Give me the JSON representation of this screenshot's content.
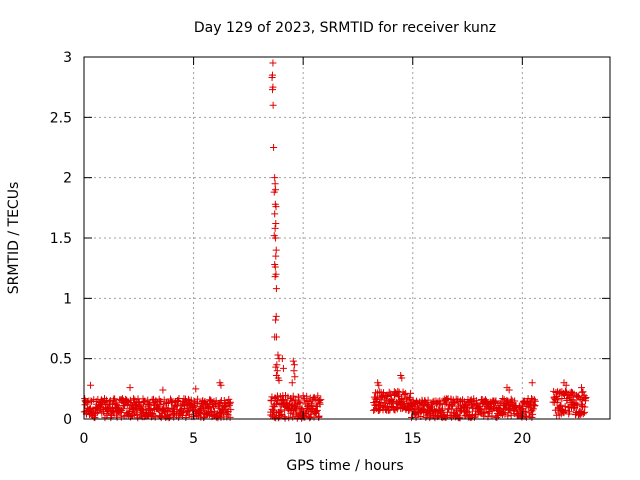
{
  "chart_data": {
    "type": "scatter",
    "title": "Day 129 of 2023, SRMTID for receiver kunz",
    "xlabel": "GPS time / hours",
    "ylabel": "SRMTID / TECUs",
    "xlim": [
      0,
      24
    ],
    "ylim": [
      0,
      3
    ],
    "xticks": [
      0,
      5,
      10,
      15,
      20
    ],
    "yticks": [
      0,
      0.5,
      1,
      1.5,
      2,
      2.5,
      3
    ],
    "ytick_labels": [
      "0",
      "0.5",
      "1",
      "1.5",
      "2",
      "2.5",
      "3"
    ],
    "grid": true,
    "marker": "+",
    "color": "#e00000",
    "segments": [
      {
        "x_start": 0.0,
        "x_end": 6.7,
        "base": 0.09,
        "noise": 0.08,
        "count": 430
      },
      {
        "x_start": 8.5,
        "x_end": 10.8,
        "base": 0.1,
        "noise": 0.1,
        "count": 150
      },
      {
        "x_start": 13.2,
        "x_end": 14.9,
        "base": 0.15,
        "noise": 0.08,
        "count": 110
      },
      {
        "x_start": 14.9,
        "x_end": 20.6,
        "base": 0.09,
        "noise": 0.08,
        "count": 360
      },
      {
        "x_start": 21.4,
        "x_end": 22.9,
        "base": 0.13,
        "noise": 0.1,
        "count": 100
      }
    ],
    "points": [
      {
        "x": 8.62,
        "y": 2.95
      },
      {
        "x": 8.6,
        "y": 2.85
      },
      {
        "x": 8.58,
        "y": 2.83
      },
      {
        "x": 8.62,
        "y": 2.75
      },
      {
        "x": 8.6,
        "y": 2.73
      },
      {
        "x": 8.63,
        "y": 2.6
      },
      {
        "x": 8.65,
        "y": 2.25
      },
      {
        "x": 8.7,
        "y": 2.0
      },
      {
        "x": 8.72,
        "y": 1.95
      },
      {
        "x": 8.68,
        "y": 1.88
      },
      {
        "x": 8.74,
        "y": 1.9
      },
      {
        "x": 8.73,
        "y": 1.78
      },
      {
        "x": 8.76,
        "y": 1.76
      },
      {
        "x": 8.7,
        "y": 1.7
      },
      {
        "x": 8.75,
        "y": 1.62
      },
      {
        "x": 8.72,
        "y": 1.58
      },
      {
        "x": 8.68,
        "y": 1.52
      },
      {
        "x": 8.74,
        "y": 1.5
      },
      {
        "x": 8.77,
        "y": 1.4
      },
      {
        "x": 8.75,
        "y": 1.35
      },
      {
        "x": 8.7,
        "y": 1.28
      },
      {
        "x": 8.73,
        "y": 1.26
      },
      {
        "x": 8.76,
        "y": 1.2
      },
      {
        "x": 8.72,
        "y": 1.18
      },
      {
        "x": 8.78,
        "y": 1.08
      },
      {
        "x": 8.77,
        "y": 0.85
      },
      {
        "x": 8.74,
        "y": 0.82
      },
      {
        "x": 8.7,
        "y": 0.68
      },
      {
        "x": 8.78,
        "y": 0.68
      },
      {
        "x": 8.85,
        "y": 0.53
      },
      {
        "x": 8.9,
        "y": 0.5
      },
      {
        "x": 8.8,
        "y": 0.45
      },
      {
        "x": 8.75,
        "y": 0.43
      },
      {
        "x": 8.82,
        "y": 0.4
      },
      {
        "x": 8.78,
        "y": 0.36
      },
      {
        "x": 8.86,
        "y": 0.34
      },
      {
        "x": 8.9,
        "y": 0.32
      },
      {
        "x": 9.05,
        "y": 0.5
      },
      {
        "x": 9.1,
        "y": 0.42
      },
      {
        "x": 9.55,
        "y": 0.48
      },
      {
        "x": 9.6,
        "y": 0.45
      },
      {
        "x": 9.58,
        "y": 0.4
      },
      {
        "x": 9.62,
        "y": 0.35
      },
      {
        "x": 9.5,
        "y": 0.3
      },
      {
        "x": 6.2,
        "y": 0.3
      },
      {
        "x": 6.25,
        "y": 0.28
      },
      {
        "x": 13.4,
        "y": 0.3
      },
      {
        "x": 13.45,
        "y": 0.28
      },
      {
        "x": 14.45,
        "y": 0.36
      },
      {
        "x": 14.5,
        "y": 0.34
      },
      {
        "x": 19.3,
        "y": 0.26
      },
      {
        "x": 19.4,
        "y": 0.24
      },
      {
        "x": 20.45,
        "y": 0.3
      },
      {
        "x": 21.9,
        "y": 0.3
      },
      {
        "x": 22.0,
        "y": 0.28
      },
      {
        "x": 22.7,
        "y": 0.26
      },
      {
        "x": 0.3,
        "y": 0.28
      },
      {
        "x": 2.1,
        "y": 0.26
      },
      {
        "x": 3.6,
        "y": 0.24
      },
      {
        "x": 5.1,
        "y": 0.25
      }
    ]
  }
}
